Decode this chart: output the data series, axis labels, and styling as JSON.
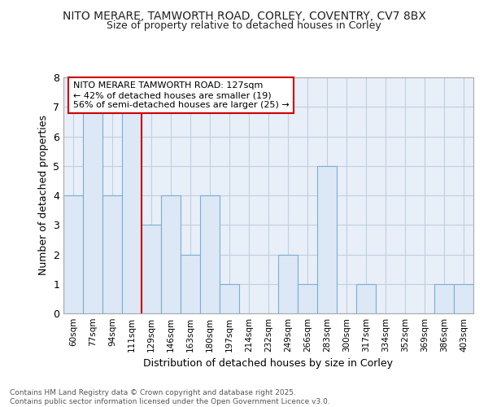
{
  "title1": "NITO MERARE, TAMWORTH ROAD, CORLEY, COVENTRY, CV7 8BX",
  "title2": "Size of property relative to detached houses in Corley",
  "xlabel": "Distribution of detached houses by size in Corley",
  "ylabel": "Number of detached properties",
  "categories": [
    "60sqm",
    "77sqm",
    "94sqm",
    "111sqm",
    "129sqm",
    "146sqm",
    "163sqm",
    "180sqm",
    "197sqm",
    "214sqm",
    "232sqm",
    "249sqm",
    "266sqm",
    "283sqm",
    "300sqm",
    "317sqm",
    "334sqm",
    "352sqm",
    "369sqm",
    "386sqm",
    "403sqm"
  ],
  "values": [
    4,
    7,
    4,
    7,
    3,
    4,
    2,
    4,
    1,
    0,
    0,
    2,
    1,
    5,
    0,
    1,
    0,
    0,
    0,
    1,
    1
  ],
  "bar_color": "#dce8f5",
  "bar_edge_color": "#7aadd4",
  "vline_x_index": 4,
  "vline_color": "#cc0000",
  "annotation_text": "NITO MERARE TAMWORTH ROAD: 127sqm\n← 42% of detached houses are smaller (19)\n56% of semi-detached houses are larger (25) →",
  "annotation_box_color": "#ffffff",
  "annotation_box_edge": "#cc0000",
  "ylim": [
    0,
    8
  ],
  "yticks": [
    0,
    1,
    2,
    3,
    4,
    5,
    6,
    7,
    8
  ],
  "footer_text": "Contains HM Land Registry data © Crown copyright and database right 2025.\nContains public sector information licensed under the Open Government Licence v3.0.",
  "bg_color": "#ffffff",
  "plot_bg_color": "#e8eff8",
  "grid_color": "#c0cfe0"
}
